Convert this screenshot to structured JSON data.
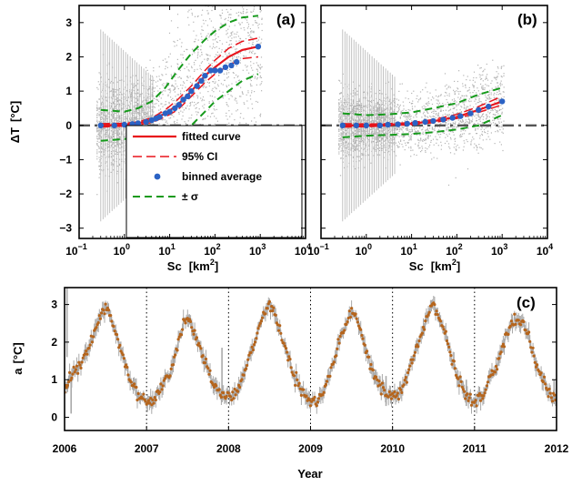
{
  "colors": {
    "scatter": "#b4b4b4",
    "fit": "#e8131b",
    "ci": "#e8131b",
    "binned": "#2b62c4",
    "sigma": "#159a1b",
    "zero_line": "#555555",
    "series_c_line": "#a9a9a9",
    "series_c_dots": "#b5651d"
  },
  "chart_data": [
    {
      "panel": "(a)",
      "type": "scatter",
      "xlabel": "Sc",
      "xlabel_unit": "[km",
      "xlabel_sup": "2",
      "xlabel_close": "]",
      "ylabel": "ΔT",
      "ylabel_unit": "[°C]",
      "xscale": "log",
      "xlim": [
        0.1,
        10000
      ],
      "ylim": [
        -3.3,
        3.5
      ],
      "x_ticks": [
        {
          "base": "10",
          "exp": "−1",
          "value": 0.1
        },
        {
          "base": "10",
          "exp": "0",
          "value": 1
        },
        {
          "base": "10",
          "exp": "1",
          "value": 10
        },
        {
          "base": "10",
          "exp": "2",
          "value": 100
        },
        {
          "base": "10",
          "exp": "3",
          "value": 1000
        },
        {
          "base": "10",
          "exp": "4",
          "value": 10000
        }
      ],
      "y_ticks": [
        "−3",
        "−2",
        "−1",
        "0",
        "1",
        "2",
        "3"
      ],
      "zero_line": 0,
      "legend": {
        "position": "lower-right",
        "entries": [
          {
            "key": "fit",
            "label": "fitted curve"
          },
          {
            "key": "ci",
            "label": "95% CI"
          },
          {
            "key": "binned",
            "label": "binned average"
          },
          {
            "key": "sigma",
            "label": "± σ"
          }
        ]
      },
      "fitted_curve": {
        "x": [
          0.3,
          1,
          2,
          4,
          8,
          15,
          30,
          60,
          100,
          200,
          400,
          900
        ],
        "y": [
          0.0,
          0.02,
          0.06,
          0.15,
          0.35,
          0.6,
          1.0,
          1.45,
          1.7,
          2.0,
          2.2,
          2.3
        ]
      },
      "ci_upper": {
        "x": [
          0.3,
          1,
          2,
          4,
          8,
          15,
          30,
          60,
          100,
          200,
          400,
          900
        ],
        "y": [
          0.05,
          0.06,
          0.1,
          0.22,
          0.45,
          0.75,
          1.15,
          1.6,
          1.9,
          2.25,
          2.45,
          2.55
        ]
      },
      "ci_lower": {
        "x": [
          0.3,
          1,
          2,
          4,
          8,
          15,
          30,
          60,
          100,
          200,
          400,
          900
        ],
        "y": [
          -0.05,
          -0.02,
          0.02,
          0.08,
          0.25,
          0.45,
          0.85,
          1.25,
          1.5,
          1.75,
          1.95,
          2.0
        ]
      },
      "sigma_upper": {
        "x": [
          0.3,
          1,
          2,
          4,
          8,
          15,
          30,
          60,
          100,
          200,
          400,
          900
        ],
        "y": [
          0.45,
          0.4,
          0.5,
          0.7,
          1.1,
          1.6,
          2.1,
          2.5,
          2.75,
          3.0,
          3.15,
          3.2
        ]
      },
      "sigma_lower": {
        "x": [
          0.3,
          1,
          2,
          4,
          8,
          15,
          30,
          60,
          100,
          200,
          400,
          900
        ],
        "y": [
          -0.45,
          -0.4,
          -0.35,
          -0.3,
          -0.3,
          -0.25,
          0.0,
          0.4,
          0.7,
          1.0,
          1.3,
          1.5
        ]
      },
      "binned_average": {
        "x": [
          0.3,
          0.6,
          1,
          1.5,
          2,
          3,
          4,
          5,
          6,
          8,
          10,
          13,
          16,
          20,
          25,
          30,
          40,
          50,
          60,
          80,
          100,
          130,
          170,
          230,
          300,
          900
        ],
        "y": [
          0.0,
          0.0,
          0.02,
          0.04,
          0.06,
          0.1,
          0.15,
          0.2,
          0.25,
          0.35,
          0.4,
          0.5,
          0.6,
          0.75,
          0.85,
          1.0,
          1.15,
          1.3,
          1.45,
          1.6,
          1.6,
          1.6,
          1.7,
          1.75,
          1.85,
          2.3
        ]
      }
    },
    {
      "panel": "(b)",
      "type": "scatter",
      "xlabel": "Sc",
      "xlabel_unit": "[km",
      "xlabel_sup": "2",
      "xlabel_close": "]",
      "xscale": "log",
      "xlim": [
        0.1,
        10000
      ],
      "ylim": [
        -3.3,
        3.5
      ],
      "x_ticks": [
        {
          "base": "10",
          "exp": "−1",
          "value": 0.1
        },
        {
          "base": "10",
          "exp": "0",
          "value": 1
        },
        {
          "base": "10",
          "exp": "1",
          "value": 10
        },
        {
          "base": "10",
          "exp": "2",
          "value": 100
        },
        {
          "base": "10",
          "exp": "3",
          "value": 1000
        },
        {
          "base": "10",
          "exp": "4",
          "value": 10000
        }
      ],
      "zero_line": 0,
      "fitted_curve": {
        "x": [
          0.3,
          1,
          3,
          10,
          30,
          100,
          300,
          1000
        ],
        "y": [
          0.0,
          0.0,
          0.02,
          0.05,
          0.12,
          0.25,
          0.45,
          0.7
        ]
      },
      "ci_upper": {
        "x": [
          0.3,
          1,
          3,
          10,
          30,
          100,
          300,
          1000
        ],
        "y": [
          0.05,
          0.04,
          0.05,
          0.08,
          0.17,
          0.32,
          0.55,
          0.85
        ]
      },
      "ci_lower": {
        "x": [
          0.3,
          1,
          3,
          10,
          30,
          100,
          300,
          1000
        ],
        "y": [
          -0.05,
          -0.04,
          -0.01,
          0.02,
          0.08,
          0.2,
          0.38,
          0.6
        ]
      },
      "sigma_upper": {
        "x": [
          0.3,
          1,
          3,
          10,
          30,
          100,
          300,
          1000
        ],
        "y": [
          0.35,
          0.3,
          0.32,
          0.38,
          0.5,
          0.65,
          0.9,
          1.1
        ]
      },
      "sigma_lower": {
        "x": [
          0.3,
          1,
          3,
          10,
          30,
          100,
          300,
          1000
        ],
        "y": [
          -0.35,
          -0.3,
          -0.28,
          -0.25,
          -0.2,
          -0.12,
          0.0,
          0.3
        ]
      },
      "binned_average": {
        "x": [
          0.3,
          0.6,
          1,
          2,
          3,
          5,
          8,
          12,
          20,
          30,
          50,
          80,
          120,
          200,
          300,
          500,
          1000
        ],
        "y": [
          0.0,
          0.0,
          0.0,
          0.0,
          0.02,
          0.03,
          0.05,
          0.07,
          0.1,
          0.13,
          0.17,
          0.22,
          0.27,
          0.35,
          0.45,
          0.55,
          0.7
        ]
      }
    },
    {
      "panel": "(c)",
      "type": "line",
      "xlabel": "Year",
      "ylabel": "a",
      "ylabel_unit": "[°C]",
      "xlim": [
        2006,
        2012
      ],
      "ylim": [
        -0.35,
        3.45
      ],
      "x_ticks": [
        "2006",
        "2007",
        "2008",
        "2009",
        "2010",
        "2011",
        "2012"
      ],
      "y_ticks": [
        "0",
        "1",
        "2",
        "3"
      ],
      "year_dividers": [
        2007,
        2008,
        2009,
        2010,
        2011
      ],
      "series": [
        {
          "x": [
            2006.0,
            2006.05,
            2006.1,
            2006.2,
            2006.3,
            2006.4,
            2006.45,
            2006.5,
            2006.55,
            2006.6,
            2006.7,
            2006.8,
            2006.9,
            2007.0,
            2007.1,
            2007.2,
            2007.3,
            2007.4,
            2007.45,
            2007.5,
            2007.55,
            2007.6,
            2007.7,
            2007.8,
            2007.9,
            2008.0,
            2008.1,
            2008.2,
            2008.3,
            2008.4,
            2008.45,
            2008.5,
            2008.55,
            2008.6,
            2008.7,
            2008.8,
            2008.9,
            2009.0,
            2009.1,
            2009.2,
            2009.3,
            2009.4,
            2009.45,
            2009.5,
            2009.55,
            2009.6,
            2009.7,
            2009.8,
            2009.9,
            2010.0,
            2010.1,
            2010.2,
            2010.3,
            2010.4,
            2010.45,
            2010.5,
            2010.55,
            2010.6,
            2010.7,
            2010.8,
            2010.9,
            2011.0,
            2011.1,
            2011.2,
            2011.3,
            2011.4,
            2011.45,
            2011.5,
            2011.55,
            2011.6,
            2011.7,
            2011.8,
            2011.9,
            2012.0
          ],
          "y": [
            0.7,
            1.0,
            1.2,
            1.4,
            1.9,
            2.4,
            2.8,
            2.9,
            2.7,
            2.4,
            1.7,
            1.0,
            0.6,
            0.4,
            0.5,
            0.9,
            1.3,
            2.1,
            2.5,
            2.6,
            2.4,
            2.2,
            1.5,
            1.0,
            0.6,
            0.5,
            0.7,
            1.2,
            1.9,
            2.6,
            2.9,
            3.0,
            2.8,
            2.5,
            1.8,
            1.1,
            0.7,
            0.4,
            0.4,
            0.9,
            1.6,
            2.3,
            2.6,
            2.8,
            2.7,
            2.4,
            1.6,
            1.0,
            0.7,
            0.5,
            0.7,
            1.2,
            1.9,
            2.5,
            2.8,
            3.0,
            2.8,
            2.5,
            1.8,
            1.0,
            0.6,
            0.4,
            0.6,
            1.1,
            1.6,
            2.3,
            2.5,
            2.6,
            2.6,
            2.5,
            1.8,
            1.1,
            0.7,
            0.4
          ]
        }
      ]
    }
  ]
}
